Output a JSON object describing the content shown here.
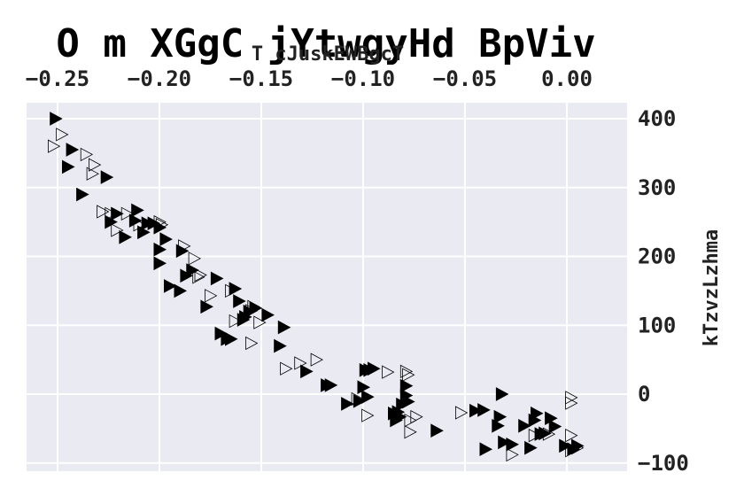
{
  "chart_data": {
    "type": "scatter",
    "title": "O m XGgC jYtwgyHd BpViv",
    "xlabel": "T cJuskEWBgcT",
    "ylabel": "kTzvzLzhma",
    "xlim": [
      -0.255,
      0.02
    ],
    "ylim": [
      -110,
      420
    ],
    "x_ticks": [
      "-0.25",
      "-0.20",
      "-0.15",
      "-0.10",
      "-0.05",
      "0.00"
    ],
    "y_ticks": [
      "400",
      "300",
      "200",
      "100",
      "0",
      "-100"
    ],
    "x_axis_position": "top",
    "y_axis_position": "right",
    "grid": true,
    "background": "#e9eaf2",
    "series": [
      {
        "marker": "filled-triangle-right",
        "color": "#000000",
        "points": [
          [
            -0.251,
            400
          ],
          [
            -0.245,
            330
          ],
          [
            -0.243,
            355
          ],
          [
            -0.238,
            290
          ],
          [
            -0.226,
            315
          ],
          [
            -0.224,
            250
          ],
          [
            -0.221,
            262
          ],
          [
            -0.217,
            228
          ],
          [
            -0.212,
            252
          ],
          [
            -0.211,
            267
          ],
          [
            -0.208,
            235
          ],
          [
            -0.206,
            248
          ],
          [
            -0.203,
            248
          ],
          [
            -0.2,
            190
          ],
          [
            -0.2,
            210
          ],
          [
            -0.2,
            242
          ],
          [
            -0.197,
            225
          ],
          [
            -0.195,
            157
          ],
          [
            -0.19,
            150
          ],
          [
            -0.189,
            208
          ],
          [
            -0.187,
            172
          ],
          [
            -0.184,
            180
          ],
          [
            -0.177,
            127
          ],
          [
            -0.172,
            168
          ],
          [
            -0.17,
            88
          ],
          [
            -0.167,
            80
          ],
          [
            -0.165,
            80
          ],
          [
            -0.163,
            153
          ],
          [
            -0.161,
            135
          ],
          [
            -0.159,
            108
          ],
          [
            -0.158,
            112
          ],
          [
            -0.156,
            120
          ],
          [
            -0.153,
            125
          ],
          [
            -0.147,
            115
          ],
          [
            -0.141,
            70
          ],
          [
            -0.139,
            97
          ],
          [
            -0.128,
            33
          ],
          [
            -0.118,
            13
          ],
          [
            -0.116,
            13
          ],
          [
            -0.108,
            -14
          ],
          [
            -0.102,
            -10
          ],
          [
            -0.1,
            10
          ],
          [
            -0.099,
            35
          ],
          [
            -0.098,
            -4
          ],
          [
            -0.097,
            35
          ],
          [
            -0.095,
            37
          ],
          [
            -0.085,
            -28
          ],
          [
            -0.084,
            -38
          ],
          [
            -0.083,
            -26
          ],
          [
            -0.082,
            -33
          ],
          [
            -0.081,
            -15
          ],
          [
            -0.079,
            12
          ],
          [
            -0.079,
            -2
          ],
          [
            -0.078,
            -11
          ],
          [
            -0.064,
            -53
          ],
          [
            -0.045,
            -24
          ],
          [
            -0.041,
            -23
          ],
          [
            -0.04,
            -80
          ],
          [
            -0.034,
            -46
          ],
          [
            -0.033,
            -33
          ],
          [
            -0.032,
            0
          ],
          [
            -0.031,
            -70
          ],
          [
            -0.027,
            -73
          ],
          [
            -0.021,
            -46
          ],
          [
            -0.018,
            -78
          ],
          [
            -0.016,
            -38
          ],
          [
            -0.015,
            -28
          ],
          [
            -0.013,
            -58
          ],
          [
            -0.011,
            -57
          ],
          [
            -0.008,
            -35
          ],
          [
            -0.006,
            -47
          ],
          [
            -0.001,
            -75
          ],
          [
            0.005,
            -75
          ],
          [
            0.003,
            -80
          ]
        ]
      },
      {
        "marker": "hollow-triangle-right",
        "color": "#000000",
        "points": [
          [
            -0.252,
            360
          ],
          [
            -0.248,
            377
          ],
          [
            -0.236,
            348
          ],
          [
            -0.233,
            320
          ],
          [
            -0.232,
            333
          ],
          [
            -0.228,
            265
          ],
          [
            -0.224,
            262
          ],
          [
            -0.221,
            238
          ],
          [
            -0.216,
            262
          ],
          [
            -0.21,
            246
          ],
          [
            -0.2,
            250
          ],
          [
            -0.199,
            246
          ],
          [
            -0.188,
            215
          ],
          [
            -0.183,
            197
          ],
          [
            -0.181,
            170
          ],
          [
            -0.18,
            173
          ],
          [
            -0.175,
            143
          ],
          [
            -0.165,
            150
          ],
          [
            -0.163,
            106
          ],
          [
            -0.155,
            74
          ],
          [
            -0.155,
            121
          ],
          [
            -0.154,
            127
          ],
          [
            -0.151,
            104
          ],
          [
            -0.138,
            37
          ],
          [
            -0.131,
            45
          ],
          [
            -0.123,
            50
          ],
          [
            -0.103,
            -7
          ],
          [
            -0.098,
            -31
          ],
          [
            -0.088,
            32
          ],
          [
            -0.079,
            33
          ],
          [
            -0.078,
            28
          ],
          [
            -0.077,
            -38
          ],
          [
            -0.077,
            -55
          ],
          [
            -0.074,
            -33
          ],
          [
            -0.052,
            -27
          ],
          [
            -0.027,
            -88
          ],
          [
            -0.016,
            -60
          ],
          [
            -0.009,
            -58
          ],
          [
            0.002,
            -60
          ],
          [
            0.002,
            -5
          ],
          [
            0.002,
            -13
          ],
          [
            0.002,
            -82
          ],
          [
            0.005,
            -78
          ]
        ]
      }
    ]
  }
}
